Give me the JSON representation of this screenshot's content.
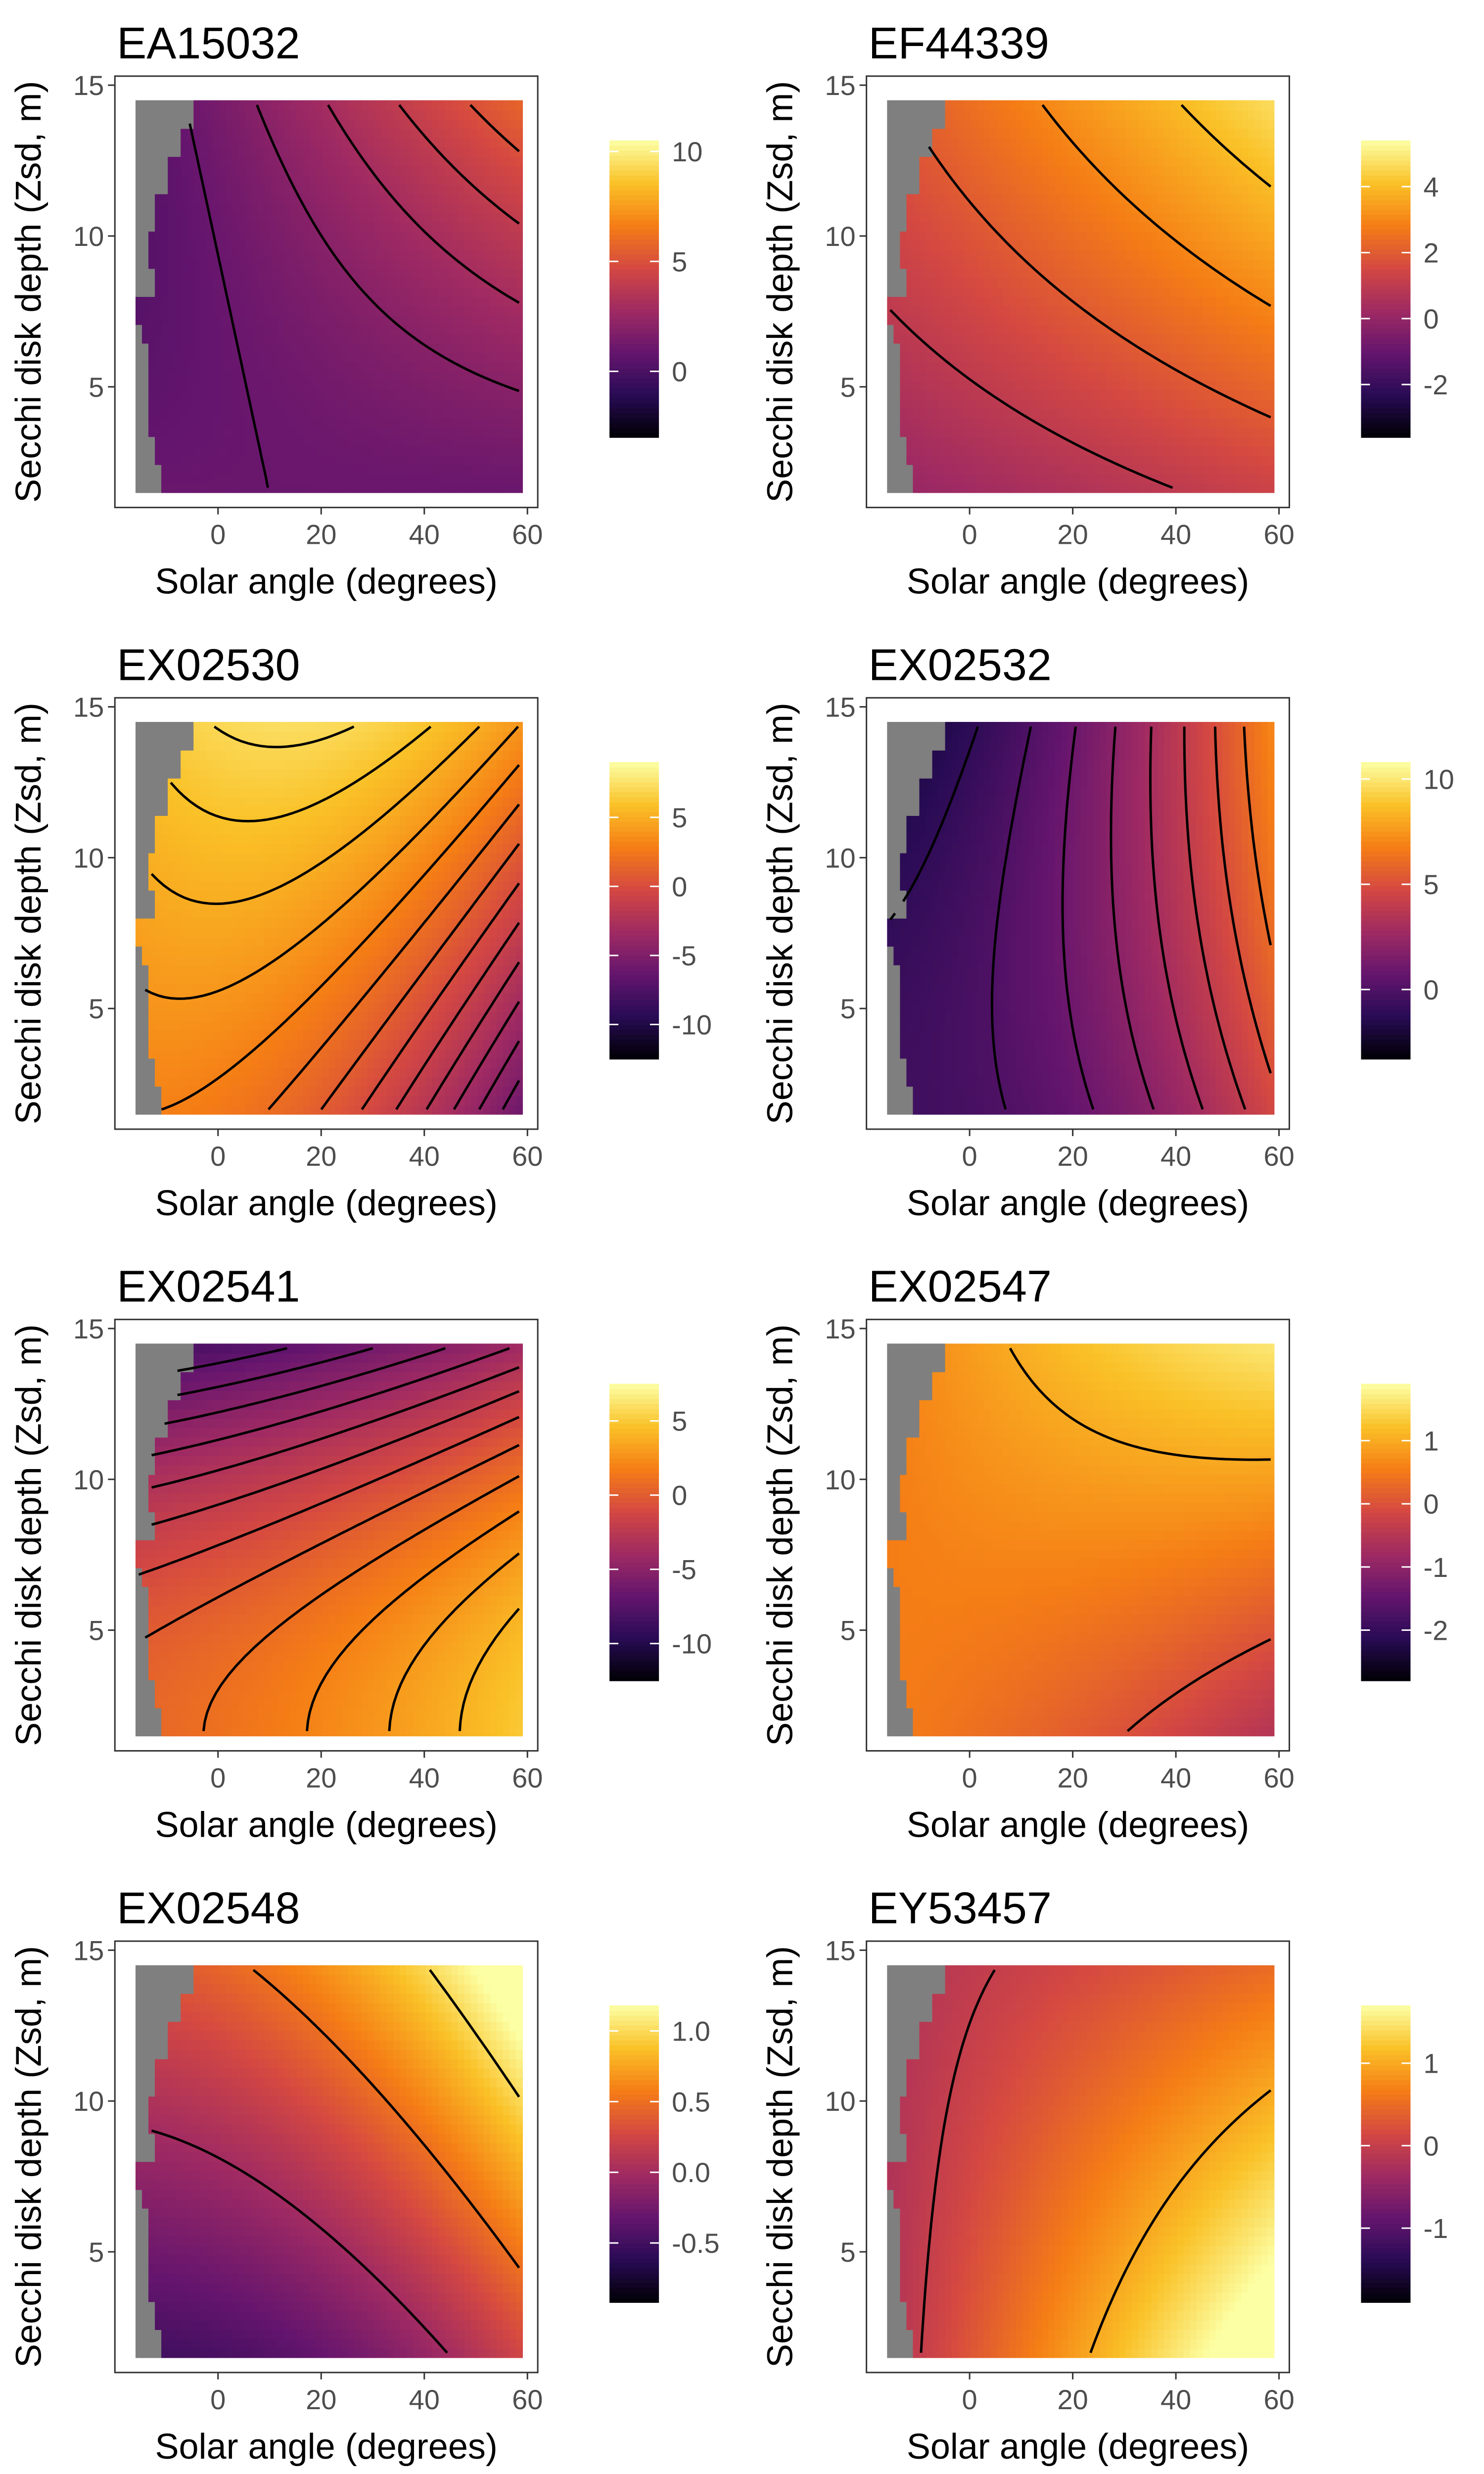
{
  "figure": {
    "xlabel": "Solar angle (degrees)",
    "ylabel": "Secchi disk depth (Zsd, m)",
    "x_ticks": [
      0,
      20,
      40,
      60
    ],
    "y_ticks": [
      5,
      10,
      15
    ],
    "mask_color": "#7f7f7f",
    "colormap": "inferno",
    "contour_color": "#000000"
  },
  "chart_data": [
    {
      "type": "heatmap",
      "title": "EA15032",
      "xlabel": "Solar angle (degrees)",
      "ylabel": "Secchi disk depth (Zsd, m)",
      "xlim": [
        -20,
        62
      ],
      "ylim": [
        1,
        15.3
      ],
      "data_x_range": [
        -16,
        59
      ],
      "data_y_range": [
        1.5,
        14.5
      ],
      "masked_region": "grey, solar angle below ≈ -5 to -13 depending on depth",
      "colorbar_ticks": [
        0,
        5,
        10
      ],
      "value_range": [
        -3.0,
        10.5
      ],
      "surface": {
        "c": 1.0,
        "x": 0.0,
        "y": -1.9,
        "xx": 0.0,
        "xy": 5.5,
        "yy": 1.2
      },
      "contour_step": 1.0,
      "samples": [
        {
          "x": -5,
          "y": 2,
          "z": -0.9
        },
        {
          "x": 59,
          "y": 2,
          "z": -2.5
        },
        {
          "x": -5,
          "y": 14,
          "z": 1.6
        },
        {
          "x": 59,
          "y": 14,
          "z": 10.2
        }
      ]
    },
    {
      "type": "heatmap",
      "title": "EF44339",
      "xlabel": "Solar angle (degrees)",
      "ylabel": "Secchi disk depth (Zsd, m)",
      "xlim": [
        -20,
        62
      ],
      "ylim": [
        1,
        15.3
      ],
      "data_x_range": [
        -16,
        59
      ],
      "data_y_range": [
        1.5,
        14.5
      ],
      "masked_region": "grey, solar angle below ≈ -5 to -13 depending on depth",
      "colorbar_ticks": [
        -2,
        0,
        2,
        4
      ],
      "value_range": [
        -3.6,
        5.4
      ],
      "surface": {
        "c": 0.0,
        "x": 1.3,
        "y": 2.3,
        "xx": 0.0,
        "xy": 1.5,
        "yy": -0.4
      },
      "contour_step": 1.0,
      "samples": [
        {
          "x": -10,
          "y": 2,
          "z": -3.3
        },
        {
          "x": 59,
          "y": 2,
          "z": -0.5
        },
        {
          "x": -5,
          "y": 14,
          "z": 0.6
        },
        {
          "x": 59,
          "y": 14,
          "z": 5.1
        }
      ]
    },
    {
      "type": "heatmap",
      "title": "EX02530",
      "xlabel": "Solar angle (degrees)",
      "ylabel": "Secchi disk depth (Zsd, m)",
      "xlim": [
        -20,
        62
      ],
      "ylim": [
        1,
        15.3
      ],
      "data_x_range": [
        -16,
        59
      ],
      "data_y_range": [
        1.5,
        14.5
      ],
      "masked_region": "grey, solar angle below ≈ -5 to -13 depending on depth",
      "colorbar_ticks": [
        -10,
        -5,
        0,
        5
      ],
      "value_range": [
        -12.5,
        9.0
      ],
      "surface": {
        "c": 3.0,
        "x": 0.0,
        "y": 3.0,
        "xx": -9.0,
        "xy": 7.0,
        "yy": 0.0
      },
      "contour_step": 1.0,
      "samples": [
        {
          "x": 22,
          "y": 3,
          "z": 0.5
        },
        {
          "x": 58,
          "y": 2,
          "z": -11.5
        },
        {
          "x": 45,
          "y": 14,
          "z": 8.5
        },
        {
          "x": -10,
          "y": 7,
          "z": -7.0
        }
      ]
    },
    {
      "type": "heatmap",
      "title": "EX02532",
      "xlabel": "Solar angle (degrees)",
      "ylabel": "Secchi disk depth (Zsd, m)",
      "xlim": [
        -20,
        62
      ],
      "ylim": [
        1,
        15.3
      ],
      "data_x_range": [
        -16,
        59
      ],
      "data_y_range": [
        1.5,
        14.5
      ],
      "masked_region": "grey, solar angle below ≈ -5 to -13 depending on depth",
      "colorbar_ticks": [
        0,
        5,
        10
      ],
      "value_range": [
        -3.3,
        10.8
      ],
      "surface": {
        "c": -0.5,
        "x": 0.0,
        "y": -0.3,
        "xx": 5.2,
        "xy": 4.2,
        "yy": -1.5
      },
      "contour_step": 1.0,
      "samples": [
        {
          "x": 20,
          "y": 14,
          "z": -3.0
        },
        {
          "x": 59,
          "y": 14,
          "z": 10.5
        },
        {
          "x": -12,
          "y": 3,
          "z": 2.5
        },
        {
          "x": 45,
          "y": 2,
          "z": -1.5
        }
      ]
    },
    {
      "type": "heatmap",
      "title": "EX02541",
      "xlabel": "Solar angle (degrees)",
      "ylabel": "Secchi disk depth (Zsd, m)",
      "xlim": [
        -20,
        62
      ],
      "ylim": [
        1,
        15.3
      ],
      "data_x_range": [
        -16,
        59
      ],
      "data_y_range": [
        1.5,
        14.5
      ],
      "masked_region": "grey, solar angle below ≈ -5 to -13 depending on depth",
      "colorbar_ticks": [
        -10,
        -5,
        0,
        5
      ],
      "value_range": [
        -12.5,
        7.5
      ],
      "surface": {
        "c": 0.5,
        "x": 2.5,
        "y": 0.0,
        "xx": 2.0,
        "xy": 0.0,
        "yy": -9.0
      },
      "contour_step": 1.0,
      "samples": [
        {
          "x": 59,
          "y": 7.5,
          "z": 7.0
        },
        {
          "x": -15,
          "y": 2,
          "z": -12.0
        },
        {
          "x": 0,
          "y": 14,
          "z": -8.0
        },
        {
          "x": 59,
          "y": 14,
          "z": -1.5
        }
      ]
    },
    {
      "type": "heatmap",
      "title": "EX02547",
      "xlabel": "Solar angle (degrees)",
      "ylabel": "Secchi disk depth (Zsd, m)",
      "xlim": [
        -20,
        62
      ],
      "ylim": [
        1,
        15.3
      ],
      "data_x_range": [
        -16,
        59
      ],
      "data_y_range": [
        1.5,
        14.5
      ],
      "masked_region": "grey, solar angle below ≈ -5 to -13 depending on depth",
      "colorbar_ticks": [
        -2,
        -1,
        0,
        1
      ],
      "value_range": [
        -2.8,
        1.9
      ],
      "surface": {
        "c": 0.55,
        "x": -0.6,
        "y": 0.0,
        "xx": -0.5,
        "xy": 2.2,
        "yy": 0.0
      },
      "contour_step": 1.0,
      "samples": [
        {
          "x": 59,
          "y": 2,
          "z": -2.7
        },
        {
          "x": 59,
          "y": 14,
          "z": 1.8
        },
        {
          "x": 0,
          "y": 8,
          "z": 0.5
        },
        {
          "x": 30,
          "y": 2,
          "z": -0.6
        }
      ]
    },
    {
      "type": "heatmap",
      "title": "EX02548",
      "xlabel": "Solar angle (degrees)",
      "ylabel": "Secchi disk depth (Zsd, m)",
      "xlim": [
        -20,
        62
      ],
      "ylim": [
        1,
        15.3
      ],
      "data_x_range": [
        -16,
        59
      ],
      "data_y_range": [
        1.5,
        14.5
      ],
      "masked_region": "grey, solar angle below ≈ -5 to -13 depending on depth",
      "colorbar_ticks": [
        -0.5,
        0.0,
        0.5,
        1.0
      ],
      "value_range": [
        -0.92,
        1.18
      ],
      "surface": {
        "c": -0.5,
        "x": 0.0,
        "y": 0.85,
        "xx": 0.75,
        "xy": 0.3,
        "yy": 0.0
      },
      "contour_step": 0.5,
      "samples": [
        {
          "x": 25,
          "y": 2,
          "z": -0.9
        },
        {
          "x": 59,
          "y": 14,
          "z": 1.15
        },
        {
          "x": -5,
          "y": 14,
          "z": 0.35
        },
        {
          "x": 17,
          "y": 9,
          "z": 0.0
        }
      ]
    },
    {
      "type": "heatmap",
      "title": "EY53457",
      "xlabel": "Solar angle (degrees)",
      "ylabel": "Secchi disk depth (Zsd, m)",
      "xlim": [
        -20,
        62
      ],
      "ylim": [
        1,
        15.3
      ],
      "data_x_range": [
        -16,
        59
      ],
      "data_y_range": [
        1.5,
        14.5
      ],
      "masked_region": "grey, solar angle below ≈ -5 to -13 depending on depth",
      "colorbar_ticks": [
        -1,
        0,
        1
      ],
      "value_range": [
        -1.9,
        1.7
      ],
      "surface": {
        "c": -0.2,
        "x": 2.3,
        "y": 0.0,
        "xx": 0.0,
        "xy": -1.6,
        "yy": 0.0
      },
      "contour_step": 1.0,
      "samples": [
        {
          "x": -15,
          "y": 2,
          "z": -1.9
        },
        {
          "x": 59,
          "y": 2,
          "z": 1.6
        },
        {
          "x": 32,
          "y": 8,
          "z": 0.0
        },
        {
          "x": 5,
          "y": 12,
          "z": -1.0
        }
      ]
    }
  ]
}
